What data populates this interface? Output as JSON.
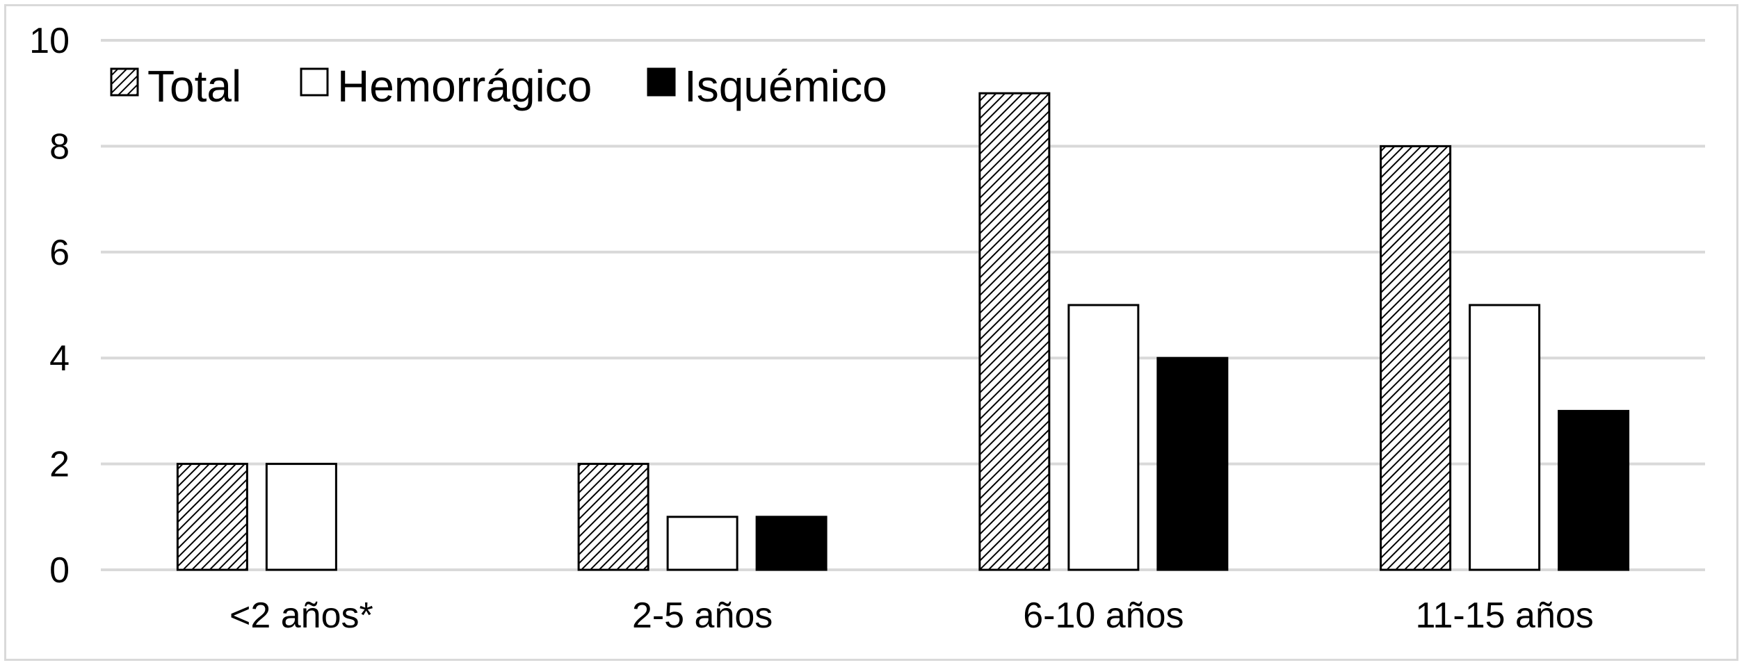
{
  "chart_data": {
    "type": "bar",
    "categories": [
      "<2 años*",
      "2-5 años",
      "6-10 años",
      "11-15 años"
    ],
    "series": [
      {
        "name": "Total",
        "values": [
          2,
          2,
          9,
          8
        ],
        "fill": "hatch"
      },
      {
        "name": "Hemorrágico",
        "values": [
          2,
          1,
          5,
          5
        ],
        "fill": "#ffffff"
      },
      {
        "name": "Isquémico",
        "values": [
          0,
          1,
          4,
          3
        ],
        "fill": "#000000"
      }
    ],
    "title": "",
    "xlabel": "",
    "ylabel": "",
    "ylim": [
      0,
      10
    ],
    "yticks": [
      0,
      2,
      4,
      6,
      8,
      10
    ],
    "grid": true,
    "legend_position": "top-left",
    "colors": {
      "grid": "#d9d9d9",
      "bar_outline": "#000000",
      "hatch_line": "#000000"
    }
  }
}
